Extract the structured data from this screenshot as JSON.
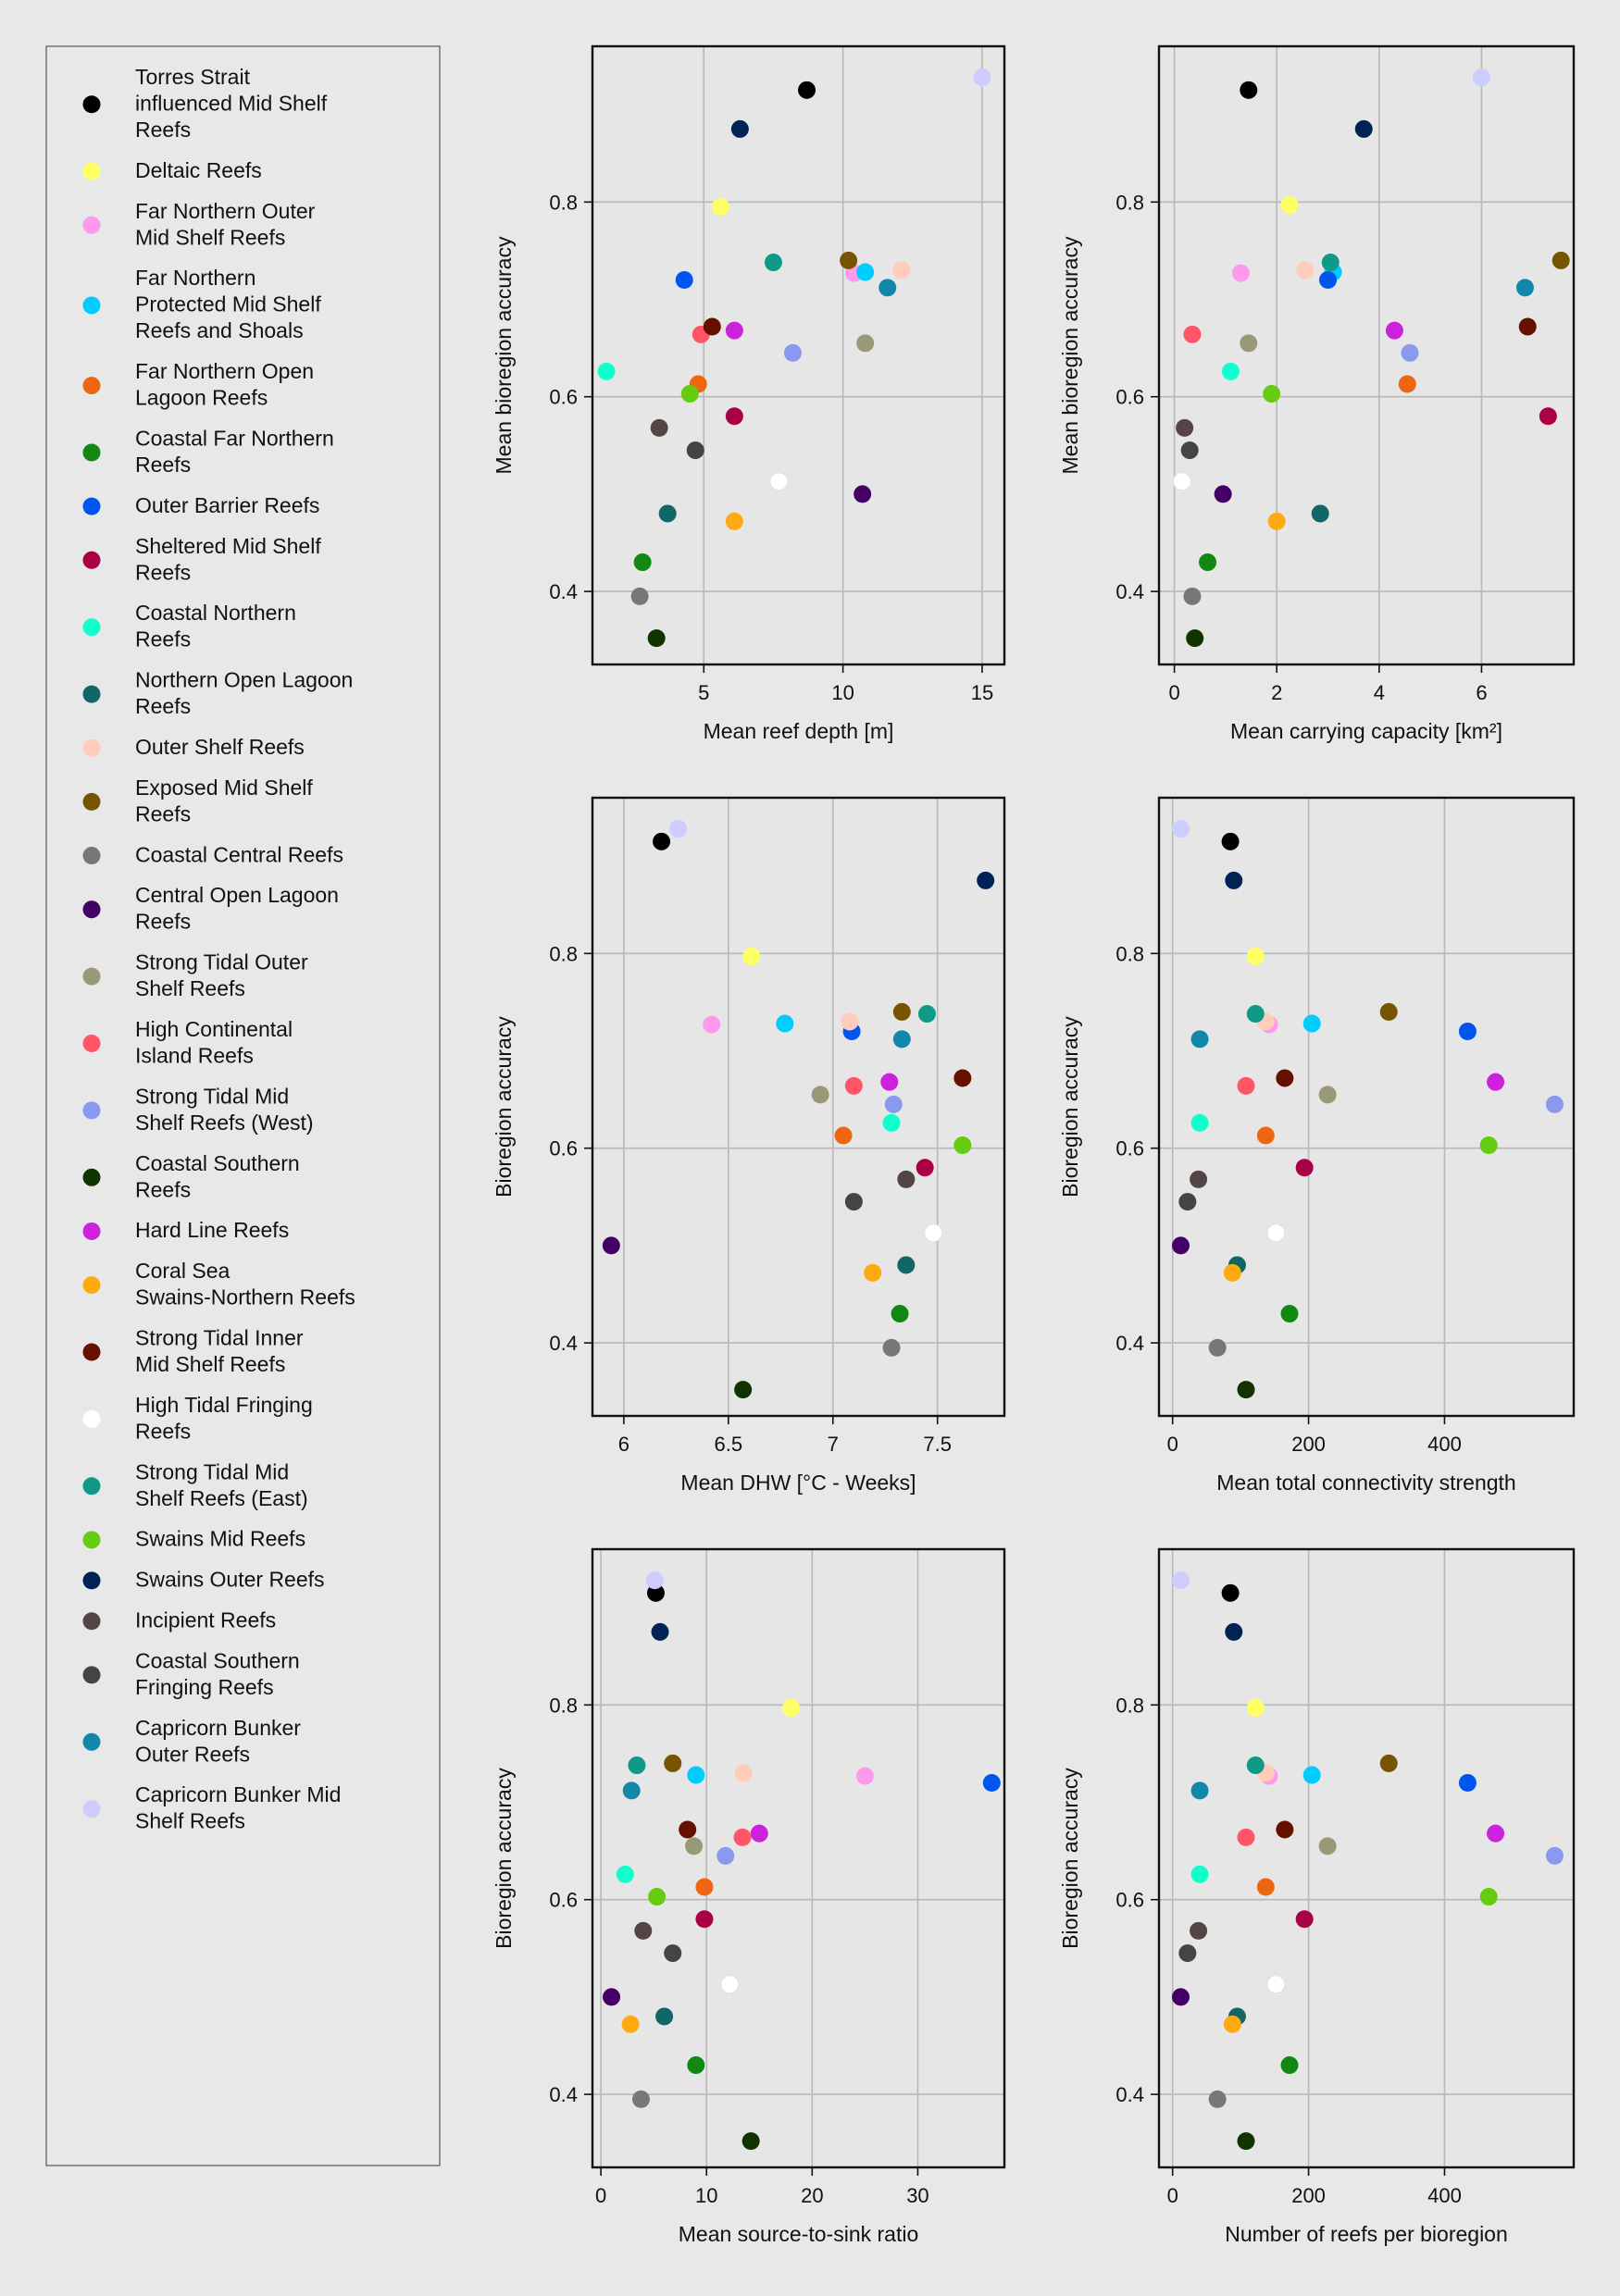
{
  "legend": {
    "entries": [
      {
        "label": "Torres Strait influenced Mid Shelf Reefs",
        "color": "#000000"
      },
      {
        "label": "Deltaic Reefs",
        "color": "#ffff66"
      },
      {
        "label": "Far Northern Outer Mid Shelf Reefs",
        "color": "#ff99ee"
      },
      {
        "label": "Far Northern Protected Mid Shelf Reefs and Shoals",
        "color": "#00ccff"
      },
      {
        "label": "Far Northern Open Lagoon Reefs",
        "color": "#ee6611"
      },
      {
        "label": "Coastal Far Northern Reefs",
        "color": "#118811"
      },
      {
        "label": "Outer Barrier Reefs",
        "color": "#0055ee"
      },
      {
        "label": "Sheltered Mid Shelf Reefs",
        "color": "#aa0044"
      },
      {
        "label": "Coastal Northern Reefs",
        "color": "#11ffcc"
      },
      {
        "label": "Northern Open Lagoon Reefs",
        "color": "#116666"
      },
      {
        "label": "Outer Shelf Reefs",
        "color": "#ffccbb"
      },
      {
        "label": "Exposed Mid Shelf Reefs",
        "color": "#775500"
      },
      {
        "label": "Coastal Central Reefs",
        "color": "#777777"
      },
      {
        "label": "Central Open Lagoon Reefs",
        "color": "#440066"
      },
      {
        "label": "Strong Tidal Outer Shelf Reefs",
        "color": "#999977"
      },
      {
        "label": "High Continental Island Reefs",
        "color": "#ff5566"
      },
      {
        "label": "Strong Tidal Mid Shelf Reefs (West)",
        "color": "#8899ee"
      },
      {
        "label": "Coastal Southern Reefs",
        "color": "#113300"
      },
      {
        "label": "Hard Line Reefs",
        "color": "#cc22dd"
      },
      {
        "label": "Coral Sea Swains-Northern Reefs",
        "color": "#ffaa11"
      },
      {
        "label": "Strong Tidal Inner Mid Shelf Reefs",
        "color": "#661100"
      },
      {
        "label": "High Tidal Fringing Reefs",
        "color": "#ffffff"
      },
      {
        "label": "Strong Tidal Mid Shelf Reefs (East)",
        "color": "#119988"
      },
      {
        "label": "Swains Mid Reefs",
        "color": "#66cc11"
      },
      {
        "label": "Swains Outer Reefs",
        "color": "#002255"
      },
      {
        "label": "Incipient Reefs",
        "color": "#554444"
      },
      {
        "label": "Coastal Southern Fringing Reefs",
        "color": "#444444"
      },
      {
        "label": "Capricorn Bunker Outer Reefs",
        "color": "#1188aa"
      },
      {
        "label": "Capricorn Bunker Mid Shelf Reefs",
        "color": "#ccccff"
      }
    ]
  },
  "chart_data": [
    {
      "type": "scatter",
      "xlabel": "Mean reef depth [m]",
      "ylabel": "Mean bioregion accuracy",
      "xlim": [
        1.0,
        15.8
      ],
      "ylim": [
        0.325,
        0.96
      ],
      "xticks": [
        5,
        10,
        15
      ],
      "yticks": [
        0.4,
        0.6,
        0.8
      ],
      "x": [
        8.7,
        5.6,
        10.4,
        10.8,
        4.8,
        2.8,
        4.3,
        6.1,
        1.5,
        3.7,
        12.1,
        10.2,
        2.7,
        10.7,
        10.8,
        4.9,
        8.2,
        3.3,
        6.1,
        6.1,
        5.3,
        7.7,
        7.5,
        4.5,
        6.3,
        3.4,
        4.7,
        11.6,
        15.0
      ],
      "y": [
        0.915,
        0.795,
        0.727,
        0.728,
        0.613,
        0.43,
        0.72,
        0.58,
        0.626,
        0.48,
        0.73,
        0.74,
        0.395,
        0.5,
        0.655,
        0.664,
        0.645,
        0.352,
        0.668,
        0.472,
        0.672,
        0.513,
        0.738,
        0.603,
        0.875,
        0.568,
        0.545,
        0.712,
        0.928
      ]
    },
    {
      "type": "scatter",
      "xlabel": "Mean carrying capacity [km²]",
      "ylabel": "Mean bioregion accuracy",
      "xlim": [
        -0.3,
        7.8
      ],
      "ylim": [
        0.325,
        0.96
      ],
      "xticks": [
        0,
        2,
        4,
        6
      ],
      "yticks": [
        0.4,
        0.6,
        0.8
      ],
      "x": [
        1.45,
        2.25,
        1.3,
        3.1,
        4.55,
        0.65,
        3.0,
        7.3,
        1.1,
        2.85,
        2.55,
        7.55,
        0.35,
        0.95,
        1.45,
        0.35,
        4.6,
        0.4,
        4.3,
        2.0,
        6.9,
        0.15,
        3.05,
        1.9,
        3.7,
        0.2,
        0.3,
        6.85,
        6.0
      ],
      "y": [
        0.915,
        0.797,
        0.727,
        0.728,
        0.613,
        0.43,
        0.72,
        0.58,
        0.626,
        0.48,
        0.73,
        0.74,
        0.395,
        0.5,
        0.655,
        0.664,
        0.645,
        0.352,
        0.668,
        0.472,
        0.672,
        0.513,
        0.738,
        0.603,
        0.875,
        0.568,
        0.545,
        0.712,
        0.928
      ]
    },
    {
      "type": "scatter",
      "xlabel": "Mean DHW [°C - Weeks]",
      "ylabel": "Bioregion accuracy",
      "xlim": [
        5.85,
        7.82
      ],
      "ylim": [
        0.325,
        0.96
      ],
      "xticks": [
        6.0,
        6.5,
        7.0,
        7.5
      ],
      "yticks": [
        0.4,
        0.6,
        0.8
      ],
      "x": [
        6.18,
        6.61,
        6.42,
        6.77,
        7.05,
        7.32,
        7.09,
        7.44,
        7.28,
        7.35,
        7.08,
        7.33,
        7.28,
        5.94,
        6.94,
        7.1,
        7.29,
        6.57,
        7.27,
        7.19,
        7.62,
        7.48,
        7.45,
        7.62,
        7.73,
        7.35,
        7.1,
        7.33,
        6.26
      ],
      "y": [
        0.915,
        0.797,
        0.727,
        0.728,
        0.613,
        0.43,
        0.72,
        0.58,
        0.626,
        0.48,
        0.73,
        0.74,
        0.395,
        0.5,
        0.655,
        0.664,
        0.645,
        0.352,
        0.668,
        0.472,
        0.672,
        0.513,
        0.738,
        0.603,
        0.875,
        0.568,
        0.545,
        0.712,
        0.928
      ]
    },
    {
      "type": "scatter",
      "xlabel": "Mean total connectivity strength",
      "ylabel": "Bioregion accuracy",
      "xlim": [
        -20,
        590
      ],
      "ylim": [
        0.325,
        0.96
      ],
      "xticks": [
        0,
        200,
        400
      ],
      "yticks": [
        0.4,
        0.6,
        0.8
      ],
      "x": [
        85,
        122,
        142,
        205,
        137,
        172,
        434,
        194,
        40,
        95,
        137,
        318,
        66,
        12,
        228,
        108,
        562,
        108,
        475,
        88,
        165,
        152,
        122,
        465,
        90,
        38,
        22,
        40,
        12
      ],
      "y": [
        0.915,
        0.797,
        0.727,
        0.728,
        0.613,
        0.43,
        0.72,
        0.58,
        0.626,
        0.48,
        0.73,
        0.74,
        0.395,
        0.5,
        0.655,
        0.664,
        0.645,
        0.352,
        0.668,
        0.472,
        0.672,
        0.513,
        0.738,
        0.603,
        0.875,
        0.568,
        0.545,
        0.712,
        0.928
      ]
    },
    {
      "type": "scatter",
      "xlabel": "Mean source-to-sink ratio",
      "ylabel": "Bioregion accuracy",
      "xlim": [
        -0.8,
        38.2
      ],
      "ylim": [
        0.325,
        0.96
      ],
      "xticks": [
        0,
        10,
        20,
        30
      ],
      "yticks": [
        0.4,
        0.6,
        0.8
      ],
      "x": [
        5.2,
        18.0,
        25.0,
        9.0,
        9.8,
        9.0,
        37.0,
        9.8,
        2.3,
        6.0,
        13.5,
        6.8,
        3.8,
        1.0,
        8.8,
        13.4,
        11.8,
        14.2,
        15.0,
        2.8,
        8.2,
        12.2,
        3.4,
        5.3,
        5.6,
        4.0,
        6.8,
        2.9,
        5.1
      ],
      "y": [
        0.915,
        0.797,
        0.727,
        0.728,
        0.613,
        0.43,
        0.72,
        0.58,
        0.626,
        0.48,
        0.73,
        0.74,
        0.395,
        0.5,
        0.655,
        0.664,
        0.645,
        0.352,
        0.668,
        0.472,
        0.672,
        0.513,
        0.738,
        0.603,
        0.875,
        0.568,
        0.545,
        0.712,
        0.928
      ]
    },
    {
      "type": "scatter",
      "xlabel": "Number of reefs per bioregion",
      "ylabel": "Bioregion accuracy",
      "xlim": [
        -20,
        590
      ],
      "ylim": [
        0.325,
        0.96
      ],
      "xticks": [
        0,
        200,
        400
      ],
      "yticks": [
        0.4,
        0.6,
        0.8
      ],
      "x": [
        85,
        122,
        142,
        205,
        137,
        172,
        434,
        194,
        40,
        95,
        137,
        318,
        66,
        12,
        228,
        108,
        562,
        108,
        475,
        88,
        165,
        152,
        122,
        465,
        90,
        38,
        22,
        40,
        12
      ],
      "y": [
        0.915,
        0.797,
        0.727,
        0.728,
        0.613,
        0.43,
        0.72,
        0.58,
        0.626,
        0.48,
        0.73,
        0.74,
        0.395,
        0.5,
        0.655,
        0.664,
        0.645,
        0.352,
        0.668,
        0.472,
        0.672,
        0.513,
        0.738,
        0.603,
        0.875,
        0.568,
        0.545,
        0.712,
        0.928
      ]
    }
  ]
}
